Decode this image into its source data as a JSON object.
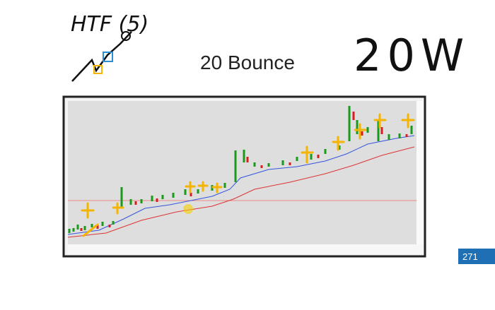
{
  "slide": {
    "title": "20 Bounce",
    "page_number": "271"
  },
  "annotations": {
    "htf": "HTF (5)",
    "note": "20W"
  }
}
